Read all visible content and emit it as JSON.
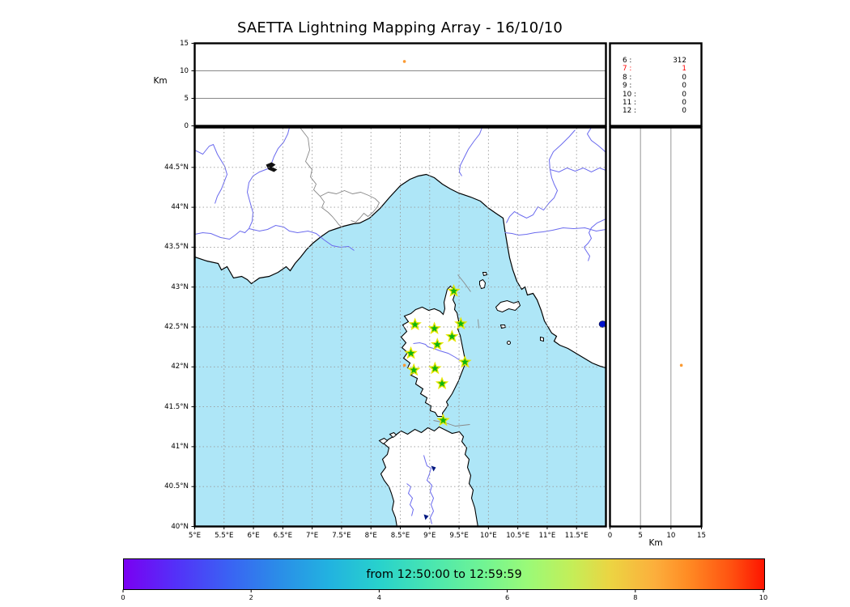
{
  "title": "SAETTA Lightning Mapping Array - 16/10/10",
  "axes": {
    "altitude_label_left": "Km",
    "altitude_label_bottom": "Km",
    "altitude_ticks": [
      0,
      5,
      10,
      15
    ],
    "altitude_grid": [
      5,
      10
    ],
    "lon_ticks": [
      {
        "value": 5,
        "label": "5°E"
      },
      {
        "value": 5.5,
        "label": "5.5°E"
      },
      {
        "value": 6,
        "label": "6°E"
      },
      {
        "value": 6.5,
        "label": "6.5°E"
      },
      {
        "value": 7,
        "label": "7°E"
      },
      {
        "value": 7.5,
        "label": "7.5°E"
      },
      {
        "value": 8,
        "label": "8°E"
      },
      {
        "value": 8.5,
        "label": "8.5°E"
      },
      {
        "value": 9,
        "label": "9°E"
      },
      {
        "value": 9.5,
        "label": "9.5°E"
      },
      {
        "value": 10,
        "label": "10°E"
      },
      {
        "value": 10.5,
        "label": "10.5°E"
      },
      {
        "value": 11,
        "label": "11°E"
      },
      {
        "value": 11.5,
        "label": "11.5°E"
      }
    ],
    "lat_ticks": [
      {
        "value": 44.5,
        "label": "44.5°N"
      },
      {
        "value": 44,
        "label": "44°N"
      },
      {
        "value": 43.5,
        "label": "43.5°N"
      },
      {
        "value": 43,
        "label": "43°N"
      },
      {
        "value": 42.5,
        "label": "42.5°N"
      },
      {
        "value": 42,
        "label": "42°N"
      },
      {
        "value": 41.5,
        "label": "41.5°N"
      },
      {
        "value": 41,
        "label": "41°N"
      },
      {
        "value": 40.5,
        "label": "40.5°N"
      },
      {
        "value": 40,
        "label": "40°N"
      }
    ]
  },
  "stats_panel": {
    "rows": [
      {
        "label": "6 :",
        "value": "312",
        "highlight": false
      },
      {
        "label": "7 :",
        "value": "1",
        "highlight": true
      },
      {
        "label": "8 :",
        "value": "0",
        "highlight": false
      },
      {
        "label": "9 :",
        "value": "0",
        "highlight": false
      },
      {
        "label": "10 :",
        "value": "0",
        "highlight": false
      },
      {
        "label": "11 :",
        "value": "0",
        "highlight": false
      },
      {
        "label": "12 :",
        "value": "0",
        "highlight": false
      }
    ]
  },
  "colorbar": {
    "label": "from 12:50:00 to 12:59:59",
    "ticks": [
      0,
      2,
      4,
      6,
      8,
      10
    ]
  },
  "colors": {
    "sea": "#aee6f7",
    "river": "#6a6aee",
    "border_line": "#888888",
    "grid": "#999999",
    "station_fill": "#0fb40f",
    "station_edge": "#e6e600",
    "source": "#fb9a32",
    "lake": "#0011cc",
    "highlight": "#ff0000"
  },
  "chart_data": {
    "type": "scatter",
    "title": "SAETTA Lightning Mapping Array - 16/10/10",
    "time_window": "from 12:50:00 to 12:59:59",
    "map_extent": {
      "lon_e": [
        5,
        12
      ],
      "lat_n": [
        40,
        45
      ]
    },
    "altitude_axis_km": [
      0,
      15
    ],
    "colorbar": {
      "range": [
        0,
        10
      ],
      "ticks": [
        0,
        2,
        4,
        6,
        8,
        10
      ],
      "colormap": "rainbow"
    },
    "stations_lon_lat": [
      [
        9.41,
        42.95
      ],
      [
        8.75,
        42.53
      ],
      [
        9.08,
        42.48
      ],
      [
        9.53,
        42.54
      ],
      [
        9.38,
        42.38
      ],
      [
        9.13,
        42.28
      ],
      [
        8.68,
        42.17
      ],
      [
        9.6,
        42.06
      ],
      [
        8.73,
        41.96
      ],
      [
        9.09,
        41.98
      ],
      [
        9.21,
        41.79
      ],
      [
        9.23,
        41.33
      ]
    ],
    "lightning_sources": [
      {
        "lon_e": 8.57,
        "lat_n": 42.02,
        "alt_km": 11.7
      }
    ],
    "sources_by_min_stations": [
      {
        "stations": 6,
        "count": 312
      },
      {
        "stations": 7,
        "count": 1
      },
      {
        "stations": 8,
        "count": 0
      },
      {
        "stations": 9,
        "count": 0
      },
      {
        "stations": 10,
        "count": 0
      },
      {
        "stations": 11,
        "count": 0
      },
      {
        "stations": 12,
        "count": 0
      }
    ]
  }
}
